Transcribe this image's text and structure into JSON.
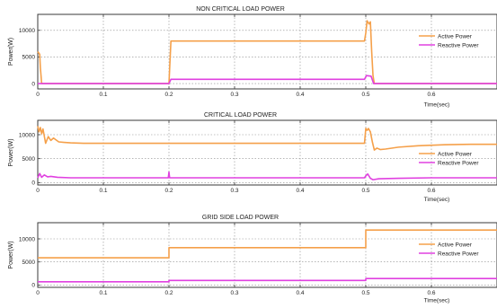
{
  "chart_data": [
    {
      "type": "line",
      "title": "NON CRITICAL LOAD POWER",
      "xlabel": "Time(sec)",
      "ylabel": "Power(W)",
      "xlim": [
        0,
        0.7
      ],
      "ylim": [
        -1000,
        13000
      ],
      "xticks": [
        0,
        0.1,
        0.2,
        0.3,
        0.4,
        0.5,
        0.6
      ],
      "yticks": [
        0,
        5000,
        10000
      ],
      "grid": true,
      "legend_position": "top-right",
      "series": [
        {
          "name": "Active Power",
          "color": "#f5a04a",
          "x": [
            0,
            0.003,
            0.004,
            0.006,
            0.2,
            0.203,
            0.498,
            0.5,
            0.502,
            0.505,
            0.507,
            0.509,
            0.511,
            0.513,
            0.7
          ],
          "y": [
            6000,
            5500,
            3000,
            0,
            0,
            8000,
            8000,
            9500,
            11800,
            11200,
            11600,
            6000,
            1500,
            0,
            0
          ]
        },
        {
          "name": "Reactive Power",
          "color": "#e040e0",
          "x": [
            0,
            0.2,
            0.203,
            0.498,
            0.501,
            0.508,
            0.512,
            0.7
          ],
          "y": [
            0,
            0,
            800,
            800,
            1500,
            1400,
            0,
            0
          ]
        }
      ]
    },
    {
      "type": "line",
      "title": "CRITICAL LOAD POWER",
      "xlabel": "Time(sec)",
      "ylabel": "Power(W)",
      "xlim": [
        0,
        0.7
      ],
      "ylim": [
        -500,
        13000
      ],
      "xticks": [
        0,
        0.1,
        0.2,
        0.3,
        0.4,
        0.5,
        0.6
      ],
      "yticks": [
        0,
        5000,
        10000
      ],
      "grid": true,
      "legend_position": "right",
      "series": [
        {
          "name": "Active Power",
          "color": "#f5a04a",
          "x": [
            0,
            0.002,
            0.004,
            0.006,
            0.008,
            0.012,
            0.016,
            0.02,
            0.024,
            0.028,
            0.032,
            0.04,
            0.05,
            0.07,
            0.1,
            0.2,
            0.3,
            0.4,
            0.498,
            0.5,
            0.502,
            0.504,
            0.507,
            0.51,
            0.513,
            0.517,
            0.522,
            0.53,
            0.55,
            0.58,
            0.62,
            0.66,
            0.7
          ],
          "y": [
            11800,
            10600,
            11500,
            10200,
            11200,
            8200,
            9600,
            8800,
            9300,
            8900,
            8500,
            8400,
            8300,
            8200,
            8200,
            8200,
            8200,
            8200,
            8200,
            11300,
            10900,
            11300,
            10600,
            8500,
            6800,
            7200,
            6900,
            7000,
            7400,
            7700,
            7900,
            8000,
            8000
          ]
        },
        {
          "name": "Reactive Power",
          "color": "#e040e0",
          "x": [
            0,
            0.003,
            0.006,
            0.01,
            0.015,
            0.02,
            0.03,
            0.05,
            0.1,
            0.199,
            0.2,
            0.201,
            0.3,
            0.4,
            0.498,
            0.5,
            0.503,
            0.507,
            0.511,
            0.52,
            0.55,
            0.6,
            0.7
          ],
          "y": [
            1000,
            1900,
            1100,
            1600,
            1200,
            1300,
            1100,
            1000,
            1000,
            1000,
            2200,
            1000,
            1000,
            1000,
            1000,
            1400,
            1800,
            900,
            600,
            800,
            900,
            1000,
            1000
          ]
        }
      ]
    },
    {
      "type": "line",
      "title": "GRID SIDE LOAD POWER",
      "xlabel": "Time(sec)",
      "ylabel": "Power(W)",
      "xlim": [
        0,
        0.7
      ],
      "ylim": [
        -500,
        13500
      ],
      "xticks": [
        0,
        0.1,
        0.2,
        0.3,
        0.4,
        0.5,
        0.6
      ],
      "yticks": [
        0,
        5000,
        10000
      ],
      "grid": true,
      "legend_position": "right",
      "series": [
        {
          "name": "Active Power",
          "color": "#f5a04a",
          "x": [
            0,
            0.2,
            0.2,
            0.5,
            0.5,
            0.7
          ],
          "y": [
            5900,
            5900,
            8100,
            8100,
            11900,
            11900
          ]
        },
        {
          "name": "Reactive Power",
          "color": "#e040e0",
          "x": [
            0,
            0.2,
            0.2,
            0.5,
            0.5,
            0.7
          ],
          "y": [
            700,
            700,
            1000,
            1000,
            1400,
            1400
          ]
        }
      ]
    }
  ]
}
